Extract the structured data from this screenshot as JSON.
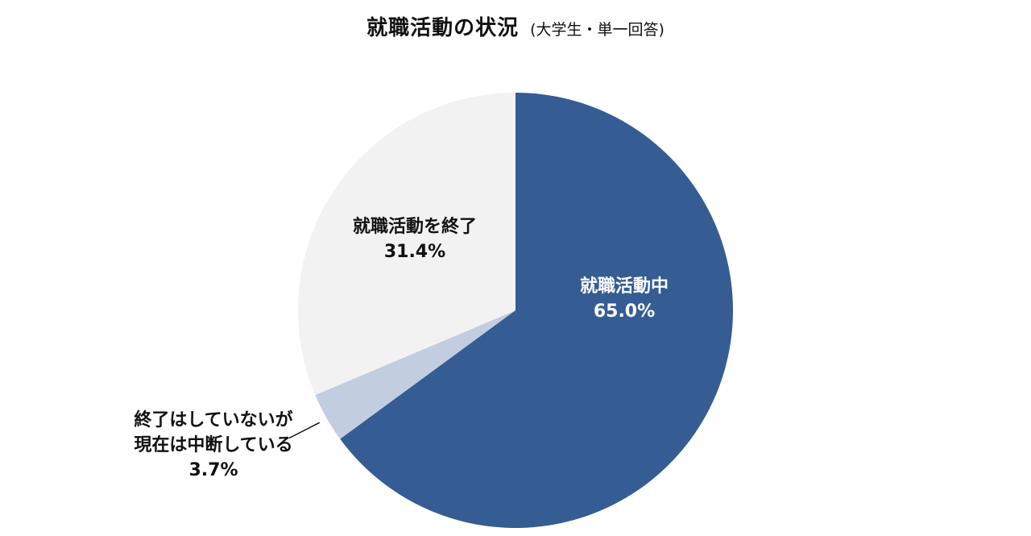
{
  "title": "就職活動の状況",
  "subtitle": "(大学生・単一回答)",
  "chart_data": {
    "type": "pie",
    "title": "就職活動の状況",
    "subtitle": "(大学生・単一回答)",
    "start_angle_deg": 0,
    "direction": "clockwise",
    "slices": [
      {
        "label": "就職活動中",
        "value": 65.0,
        "value_label": "65.0%",
        "color": "#355d94",
        "label_color": "#ffffff"
      },
      {
        "label": "終了はしていないが現在は中断している",
        "label_lines": [
          "終了はしていないが",
          "現在は中断している"
        ],
        "value": 3.7,
        "value_label": "3.7%",
        "color": "#c2cde0",
        "label_color": "#111111",
        "leader_line": true
      },
      {
        "label": "就職活動を終了",
        "value": 31.4,
        "value_label": "31.4%",
        "color": "#f2f2f2",
        "label_color": "#111111"
      }
    ]
  }
}
